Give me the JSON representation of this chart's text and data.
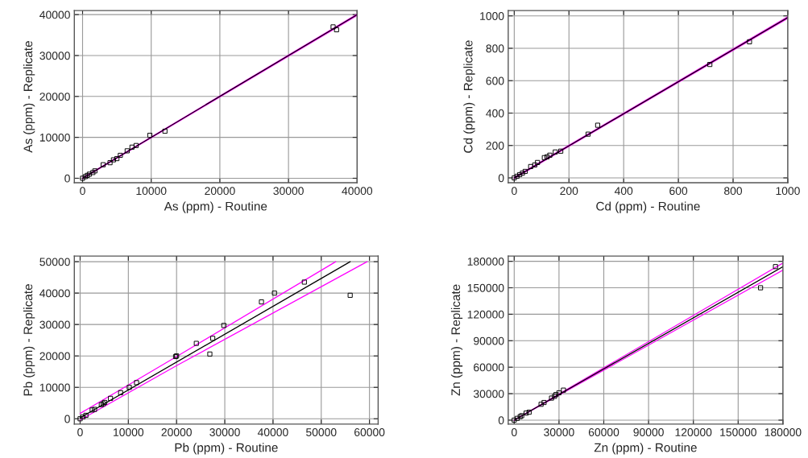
{
  "chart_data": [
    {
      "type": "scatter",
      "xlabel": "As (ppm) - Routine",
      "ylabel": "As (ppm) - Replicate",
      "xlim": [
        -1200,
        40000
      ],
      "ylim": [
        -1100,
        41000
      ],
      "xticks": [
        0,
        10000,
        20000,
        30000,
        40000
      ],
      "yticks": [
        0,
        10000,
        20000,
        30000,
        40000
      ],
      "grid": true,
      "series": [
        {
          "marker": "square",
          "color": "#000000",
          "x": [
            36500,
            37000,
            12000,
            9800,
            7800,
            7200,
            6500,
            5500,
            5000,
            4500,
            4000,
            3000,
            1800,
            1500,
            1000,
            700,
            400,
            0
          ],
          "values": [
            37000,
            36300,
            11500,
            10500,
            8000,
            7600,
            6700,
            5600,
            4800,
            4500,
            3800,
            3300,
            1800,
            1400,
            1000,
            700,
            400,
            0
          ]
        },
        {
          "type": "line",
          "color": "#ff00ff",
          "x": [
            0,
            40000
          ],
          "values": [
            100,
            40100
          ]
        },
        {
          "type": "line",
          "color": "#ff00ff",
          "x": [
            0,
            40000
          ],
          "values": [
            -100,
            39800
          ]
        },
        {
          "type": "line",
          "color": "#000000",
          "x": [
            0,
            40000
          ],
          "values": [
            0,
            40000
          ]
        }
      ]
    },
    {
      "type": "scatter",
      "xlabel": "Cd (ppm) - Routine",
      "ylabel": "Cd (ppm) - Replicate",
      "xlim": [
        -22,
        1000
      ],
      "ylim": [
        -30,
        1033
      ],
      "xticks": [
        0,
        200,
        400,
        600,
        800,
        1000
      ],
      "yticks": [
        0,
        200,
        400,
        600,
        800,
        1000
      ],
      "grid": true,
      "series": [
        {
          "marker": "square",
          "color": "#000000",
          "x": [
            860,
            715,
            305,
            270,
            170,
            150,
            130,
            120,
            110,
            85,
            75,
            60,
            40,
            30,
            20,
            10,
            0
          ],
          "values": [
            840,
            700,
            325,
            270,
            165,
            160,
            140,
            130,
            125,
            95,
            80,
            70,
            40,
            30,
            20,
            10,
            0
          ]
        },
        {
          "type": "line",
          "color": "#ff00ff",
          "x": [
            0,
            1000
          ],
          "values": [
            3,
            995
          ]
        },
        {
          "type": "line",
          "color": "#ff00ff",
          "x": [
            0,
            1000
          ],
          "values": [
            -3,
            985
          ]
        },
        {
          "type": "line",
          "color": "#000000",
          "x": [
            0,
            1000
          ],
          "values": [
            0,
            990
          ]
        }
      ]
    },
    {
      "type": "scatter",
      "xlabel": "Pb (ppm) - Routine",
      "ylabel": "Pb (ppm) - Replicate",
      "xlim": [
        -1200,
        61800
      ],
      "ylim": [
        -1700,
        51800
      ],
      "xticks": [
        0,
        10000,
        20000,
        30000,
        40000,
        50000,
        60000
      ],
      "yticks": [
        0,
        10000,
        20000,
        30000,
        40000,
        50000
      ],
      "grid": true,
      "series": [
        {
          "marker": "square",
          "color": "#000000",
          "x": [
            56000,
            46500,
            40300,
            37600,
            29800,
            27500,
            26900,
            24100,
            20000,
            19800,
            11700,
            10200,
            8400,
            6300,
            5100,
            4800,
            4400,
            3000,
            2500,
            1200,
            600,
            0
          ],
          "values": [
            39300,
            43500,
            40000,
            37200,
            29700,
            25600,
            20600,
            24000,
            20000,
            19800,
            11500,
            10000,
            8300,
            6500,
            5200,
            4800,
            4500,
            3000,
            2800,
            1100,
            600,
            0
          ]
        },
        {
          "type": "line",
          "color": "#ff00ff",
          "x": [
            0,
            20000,
            53000
          ],
          "values": [
            1700,
            19800,
            50000
          ]
        },
        {
          "type": "line",
          "color": "#ff00ff",
          "x": [
            0,
            20000,
            59500
          ],
          "values": [
            -400,
            16900,
            50000
          ]
        },
        {
          "type": "line",
          "color": "#000000",
          "x": [
            0,
            56000
          ],
          "values": [
            300,
            50000
          ]
        }
      ]
    },
    {
      "type": "scatter",
      "xlabel": "Zn (ppm) - Routine",
      "ylabel": "Zn (ppm) - Replicate",
      "xlim": [
        -4000,
        180000
      ],
      "ylim": [
        -4500,
        186000
      ],
      "xticks": [
        0,
        30000,
        60000,
        90000,
        120000,
        150000,
        180000
      ],
      "yticks": [
        0,
        30000,
        60000,
        90000,
        120000,
        150000,
        180000
      ],
      "grid": true,
      "series": [
        {
          "marker": "square",
          "color": "#000000",
          "x": [
            175000,
            165000,
            33000,
            30000,
            28000,
            27000,
            25000,
            20000,
            18000,
            10000,
            8000,
            5000,
            4000,
            2000,
            0
          ],
          "values": [
            174000,
            150000,
            34000,
            31000,
            29000,
            27000,
            25000,
            20000,
            18000,
            9000,
            8000,
            5000,
            4000,
            2000,
            0
          ]
        },
        {
          "type": "line",
          "color": "#ff00ff",
          "x": [
            0,
            180000
          ],
          "values": [
            0,
            178000
          ]
        },
        {
          "type": "line",
          "color": "#ff00ff",
          "x": [
            0,
            180000
          ],
          "values": [
            0,
            170000
          ]
        },
        {
          "type": "line",
          "color": "#000000",
          "x": [
            0,
            180000
          ],
          "values": [
            0,
            174000
          ]
        }
      ]
    }
  ]
}
